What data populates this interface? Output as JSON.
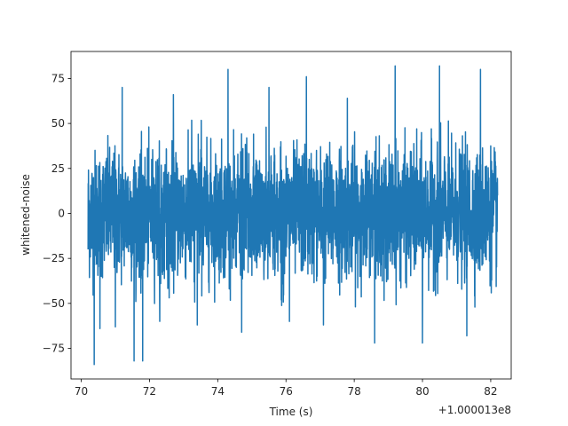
{
  "chart_data": {
    "type": "line",
    "title": "",
    "xlabel": "Time (s)",
    "ylabel": "whitened-noise",
    "x_offset_label": "+1.000013e8",
    "xlim": [
      69.7,
      82.6
    ],
    "ylim": [
      -92,
      90
    ],
    "x_ticks": [
      70,
      72,
      74,
      76,
      78,
      80,
      82
    ],
    "x_tick_labels": [
      "70",
      "72",
      "74",
      "76",
      "78",
      "80",
      "82"
    ],
    "y_ticks": [
      -75,
      -50,
      -25,
      0,
      25,
      50,
      75
    ],
    "y_tick_labels": [
      "−75",
      "−50",
      "−25",
      "0",
      "25",
      "50",
      "75"
    ],
    "grid": false,
    "series": [
      {
        "color": "#1f77b4",
        "x_range": [
          70.2,
          82.2
        ],
        "typical_band": [
          -45,
          45
        ],
        "extrema": [
          {
            "x": 70.38,
            "y": -84
          },
          {
            "x": 70.55,
            "y": -64
          },
          {
            "x": 71.0,
            "y": -63
          },
          {
            "x": 71.55,
            "y": -82
          },
          {
            "x": 71.8,
            "y": -82
          },
          {
            "x": 72.3,
            "y": -60
          },
          {
            "x": 74.3,
            "y": 80
          },
          {
            "x": 74.7,
            "y": -66
          },
          {
            "x": 76.6,
            "y": 76
          },
          {
            "x": 77.1,
            "y": -62
          },
          {
            "x": 78.6,
            "y": -72
          },
          {
            "x": 79.2,
            "y": 82
          },
          {
            "x": 80.0,
            "y": -72
          },
          {
            "x": 80.5,
            "y": 82
          },
          {
            "x": 81.3,
            "y": -68
          },
          {
            "x": 81.7,
            "y": 80
          },
          {
            "x": 71.2,
            "y": 70
          },
          {
            "x": 72.7,
            "y": 66
          },
          {
            "x": 75.5,
            "y": 70
          },
          {
            "x": 77.8,
            "y": 64
          },
          {
            "x": 73.4,
            "y": -62
          },
          {
            "x": 76.1,
            "y": -60
          }
        ]
      }
    ]
  }
}
